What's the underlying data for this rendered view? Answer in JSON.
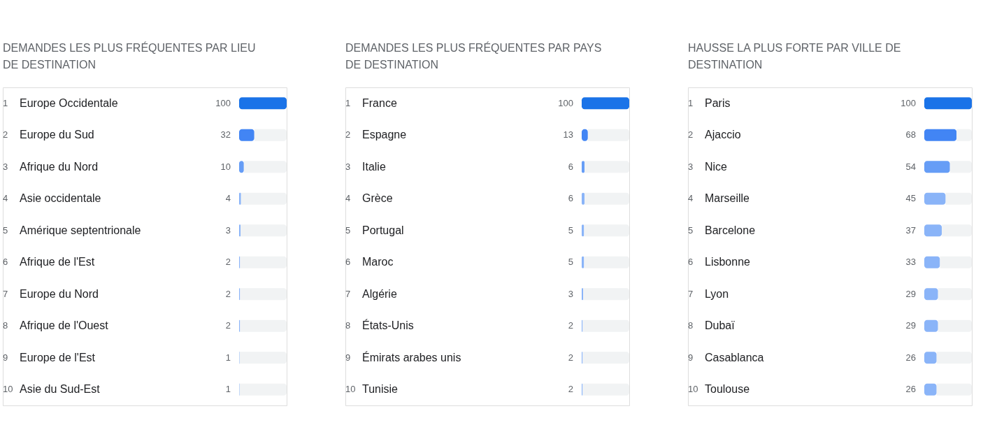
{
  "chart_data": [
    {
      "type": "bar",
      "orientation": "horizontal",
      "stacked": true,
      "title": "DEMANDES LES PLUS FRÉQUENTES PAR LIEU DE DESTINATION",
      "categories": [
        "Europe Occidentale",
        "Europe du Sud",
        "Afrique du Nord",
        "Asie occidentale",
        "Amérique septentrionale",
        "Afrique de l'Est",
        "Europe du Nord",
        "Afrique de l'Ouest",
        "Europe de l'Est",
        "Asie du Sud-Est"
      ],
      "series": [
        {
          "colors": [
            "#1a73e8",
            "#4285f4",
            "#669df6",
            "#8ab4f8",
            "#8ab4f8",
            "#8ab4f8",
            "#8ab4f8",
            "#8ab4f8",
            "#8ab4f8",
            "#8ab4f8"
          ],
          "values": [
            100,
            32,
            10,
            4,
            3,
            2,
            2,
            2,
            1,
            1
          ],
          "value_labels": [
            "100",
            "32",
            "10",
            "4",
            "3",
            "2",
            "2",
            "2",
            "1",
            "1"
          ]
        },
        {
          "color": "#f1f3f4",
          "values": [
            0,
            68,
            90,
            96,
            97,
            98,
            98,
            98,
            99,
            99
          ]
        }
      ],
      "annotations": [
        "1",
        "2",
        "3",
        "4",
        "5",
        "6",
        "7",
        "8",
        "9",
        "10"
      ]
    },
    {
      "type": "bar",
      "orientation": "horizontal",
      "stacked": true,
      "title": "DEMANDES LES PLUS FRÉQUENTES PAR PAYS DE DESTINATION",
      "categories": [
        "France",
        "Espagne",
        "Italie",
        "Grèce",
        "Portugal",
        "Maroc",
        "Algérie",
        "États-Unis",
        "Émirats arabes unis",
        "Tunisie"
      ],
      "series": [
        {
          "colors": [
            "#1a73e8",
            "#4285f4",
            "#669df6",
            "#8ab4f8",
            "#8ab4f8",
            "#8ab4f8",
            "#8ab4f8",
            "#8ab4f8",
            "#8ab4f8",
            "#8ab4f8"
          ],
          "values": [
            100,
            13,
            6,
            6,
            5,
            5,
            3,
            2,
            2,
            2
          ],
          "value_labels": [
            "100",
            "13",
            "6",
            "6",
            "5",
            "5",
            "3",
            "2",
            "2",
            "2"
          ]
        },
        {
          "color": "#f1f3f4",
          "values": [
            0,
            87,
            94,
            94,
            95,
            95,
            97,
            98,
            98,
            98
          ]
        }
      ],
      "annotations": [
        "1",
        "2",
        "3",
        "4",
        "5",
        "6",
        "7",
        "8",
        "9",
        "10"
      ]
    },
    {
      "type": "bar",
      "orientation": "horizontal",
      "stacked": true,
      "title": "HAUSSE LA PLUS FORTE PAR VILLE DE DESTINATION",
      "categories": [
        "Paris",
        "Ajaccio",
        "Nice",
        "Marseille",
        "Barcelone",
        "Lisbonne",
        "Lyon",
        "Dubaï",
        "Casablanca",
        "Toulouse"
      ],
      "series": [
        {
          "colors": [
            "#1a73e8",
            "#4285f4",
            "#669df6",
            "#8ab4f8",
            "#8ab4f8",
            "#8ab4f8",
            "#8ab4f8",
            "#8ab4f8",
            "#8ab4f8",
            "#8ab4f8"
          ],
          "values": [
            100,
            68,
            54,
            45,
            37,
            33,
            29,
            29,
            26,
            26
          ],
          "value_labels": [
            "100",
            "68",
            "54",
            "45",
            "37",
            "33",
            "29",
            "29",
            "26",
            "26"
          ]
        },
        {
          "color": "#f1f3f4",
          "values": [
            0,
            32,
            46,
            55,
            63,
            67,
            71,
            71,
            74,
            74
          ]
        }
      ],
      "annotations": [
        "1",
        "2",
        "3",
        "4",
        "5",
        "6",
        "7",
        "8",
        "9",
        "10"
      ]
    }
  ]
}
